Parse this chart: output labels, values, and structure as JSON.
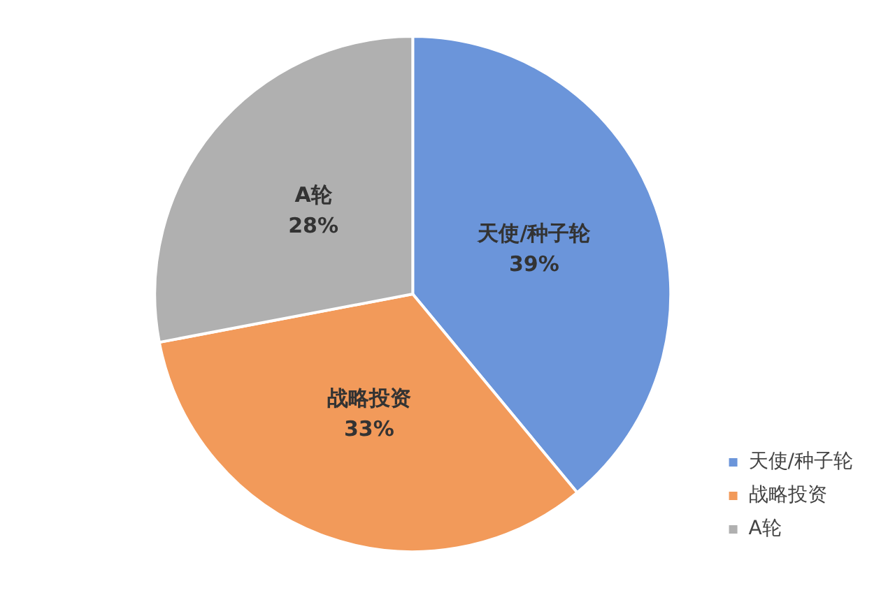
{
  "chart_data": {
    "type": "pie",
    "categories": [
      "天使/种子轮",
      "战略投资",
      "A轮"
    ],
    "values": [
      39,
      33,
      28
    ],
    "colors": [
      "#6b95da",
      "#f29a5a",
      "#b0b0b0"
    ],
    "value_labels": [
      "39%",
      "33%",
      "28%"
    ],
    "legend": "right"
  }
}
